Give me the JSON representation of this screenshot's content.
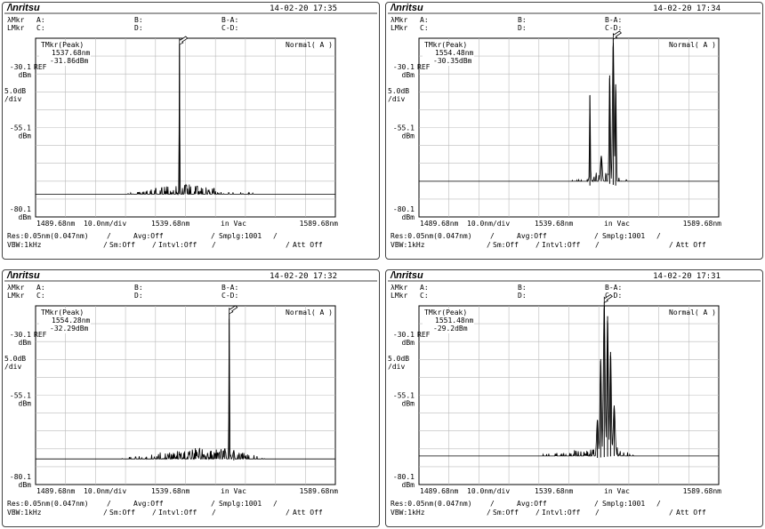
{
  "brand": "/\\nritsu",
  "header_labels": {
    "lambda_mkr": "λMkr",
    "level_mkr": "LMkr",
    "a": "A:",
    "b": "B:",
    "ba": "B-A:",
    "c": "C:",
    "d": "D:",
    "cd": "C-D:"
  },
  "screens": [
    {
      "timestamp": "14-02-20 17:35",
      "marker_mode": "TMkr(Peak)",
      "marker_wavelength": "1537.68nm",
      "marker_level": "-31.86dBm",
      "display_mode": "Normal( A )",
      "y_ref_top": "-30.1",
      "y_mid": "-55.1",
      "y_bottom": "-80.1",
      "y_unit": "dBm",
      "ref_tag": "REF",
      "y_scale": "5.0dB",
      "y_scale_unit": "/div",
      "x_start": "1489.68nm",
      "x_div": "10.0nm/div",
      "x_center": "1539.68nm",
      "x_medium": "in Vac",
      "x_stop": "1589.68nm",
      "res": "Res:0.05nm(0.047nm)",
      "avg": "Avg:Off",
      "smplg": "Smplg:1001",
      "vbw": "VBW:1kHz",
      "sm": "Sm:Off",
      "intvl": "Intvl:Off",
      "att": "Att Off"
    },
    {
      "timestamp": "14-02-20 17:34",
      "marker_mode": "TMkr(Peak)",
      "marker_wavelength": "1554.48nm",
      "marker_level": "-30.35dBm",
      "display_mode": "Normal( A )",
      "y_ref_top": "-30.1",
      "y_mid": "-55.1",
      "y_bottom": "-80.1",
      "y_unit": "dBm",
      "ref_tag": "REF",
      "y_scale": "5.0dB",
      "y_scale_unit": "/div",
      "x_start": "1489.68nm",
      "x_div": "10.0nm/div",
      "x_center": "1539.68nm",
      "x_medium": "in Vac",
      "x_stop": "1589.68nm",
      "res": "Res:0.05nm(0.047nm)",
      "avg": "Avg:Off",
      "smplg": "Smplg:1001",
      "vbw": "VBW:1kHz",
      "sm": "Sm:Off",
      "intvl": "Intvl:Off",
      "att": "Att Off"
    },
    {
      "timestamp": "14-02-20 17:32",
      "marker_mode": "TMkr(Peak)",
      "marker_wavelength": "1554.28nm",
      "marker_level": "-32.29dBm",
      "display_mode": "Normal( A )",
      "y_ref_top": "-30.1",
      "y_mid": "-55.1",
      "y_bottom": "-80.1",
      "y_unit": "dBm",
      "ref_tag": "REF",
      "y_scale": "5.0dB",
      "y_scale_unit": "/div",
      "x_start": "1489.68nm",
      "x_div": "10.0nm/div",
      "x_center": "1539.68nm",
      "x_medium": "in Vac",
      "x_stop": "1589.68nm",
      "res": "Res:0.05nm(0.047nm)",
      "avg": "Avg:Off",
      "smplg": "Smplg:1001",
      "vbw": "VBW:1kHz",
      "sm": "Sm:Off",
      "intvl": "Intvl:Off",
      "att": "Att Off"
    },
    {
      "timestamp": "14-02-20 17:31",
      "marker_mode": "TMkr(Peak)",
      "marker_wavelength": "1551.48nm",
      "marker_level": "-29.2dBm",
      "display_mode": "Normal( A )",
      "y_ref_top": "-30.1",
      "y_mid": "-55.1",
      "y_bottom": "-80.1",
      "y_unit": "dBm",
      "ref_tag": "REF",
      "y_scale": "5.0dB",
      "y_scale_unit": "/div",
      "x_start": "1489.68nm",
      "x_div": "10.0nm/div",
      "x_center": "1539.68nm",
      "x_medium": "in Vac",
      "x_stop": "1589.68nm",
      "res": "Res:0.05nm(0.047nm)",
      "avg": "Avg:Off",
      "smplg": "Smplg:1001",
      "vbw": "VBW:1kHz",
      "sm": "Sm:Off",
      "intvl": "Intvl:Off",
      "att": "Att Off"
    }
  ],
  "chart_data": [
    {
      "type": "line",
      "xlim": [
        1489.68,
        1589.68
      ],
      "ylim": [
        -80.1,
        -30.1
      ],
      "grid": true,
      "noise_floor": [
        [
          1489.68,
          -78
        ],
        [
          1510,
          -77
        ],
        [
          1525,
          -75.5
        ],
        [
          1535,
          -74
        ],
        [
          1540,
          -73.5
        ],
        [
          1550,
          -75
        ],
        [
          1560,
          -76
        ],
        [
          1575,
          -77
        ],
        [
          1589.68,
          -78
        ]
      ],
      "peaks": [
        {
          "x": 1537.68,
          "y": -31.86,
          "width": 0.15
        }
      ]
    },
    {
      "type": "line",
      "xlim": [
        1489.68,
        1589.68
      ],
      "ylim": [
        -80.1,
        -30.1
      ],
      "grid": true,
      "noise_floor": [
        [
          1489.68,
          -78
        ],
        [
          1510,
          -76
        ],
        [
          1530,
          -74
        ],
        [
          1545,
          -72
        ],
        [
          1550,
          -70
        ],
        [
          1558,
          -72
        ],
        [
          1565,
          -75
        ],
        [
          1575,
          -77
        ],
        [
          1589.68,
          -78
        ]
      ],
      "peaks": [
        {
          "x": 1554.48,
          "y": -30.35,
          "width": 0.35
        },
        {
          "x": 1553.3,
          "y": -40.5,
          "width": 0.3
        },
        {
          "x": 1555.3,
          "y": -43,
          "width": 0.3
        },
        {
          "x": 1550.5,
          "y": -63,
          "width": 0.4
        },
        {
          "x": 1546.7,
          "y": -46,
          "width": 0.2
        }
      ]
    },
    {
      "type": "line",
      "xlim": [
        1489.68,
        1589.68
      ],
      "ylim": [
        -80.1,
        -30.1
      ],
      "grid": true,
      "noise_floor": [
        [
          1489.68,
          -78
        ],
        [
          1510,
          -76
        ],
        [
          1530,
          -74
        ],
        [
          1545,
          -72.5
        ],
        [
          1554,
          -73
        ],
        [
          1565,
          -75
        ],
        [
          1575,
          -77
        ],
        [
          1589.68,
          -78
        ]
      ],
      "peaks": [
        {
          "x": 1554.28,
          "y": -32.29,
          "width": 0.15
        },
        {
          "x": 1552.8,
          "y": -70,
          "width": 0.3
        },
        {
          "x": 1555.8,
          "y": -70.5,
          "width": 0.3
        }
      ]
    },
    {
      "type": "line",
      "xlim": [
        1489.68,
        1589.68
      ],
      "ylim": [
        -80.1,
        -30.1
      ],
      "grid": true,
      "noise_floor": [
        [
          1489.68,
          -78
        ],
        [
          1510,
          -76.5
        ],
        [
          1530,
          -74.5
        ],
        [
          1545,
          -73
        ],
        [
          1556,
          -72
        ],
        [
          1565,
          -76
        ],
        [
          1575,
          -77.5
        ],
        [
          1589.68,
          -78
        ]
      ],
      "peaks": [
        {
          "x": 1551.48,
          "y": -29.2,
          "width": 0.4
        },
        {
          "x": 1552.6,
          "y": -33,
          "width": 0.35
        },
        {
          "x": 1553.6,
          "y": -43,
          "width": 0.35
        },
        {
          "x": 1550.3,
          "y": -45,
          "width": 0.35
        },
        {
          "x": 1554.8,
          "y": -58,
          "width": 0.45
        },
        {
          "x": 1549.2,
          "y": -62,
          "width": 0.4
        }
      ]
    }
  ]
}
